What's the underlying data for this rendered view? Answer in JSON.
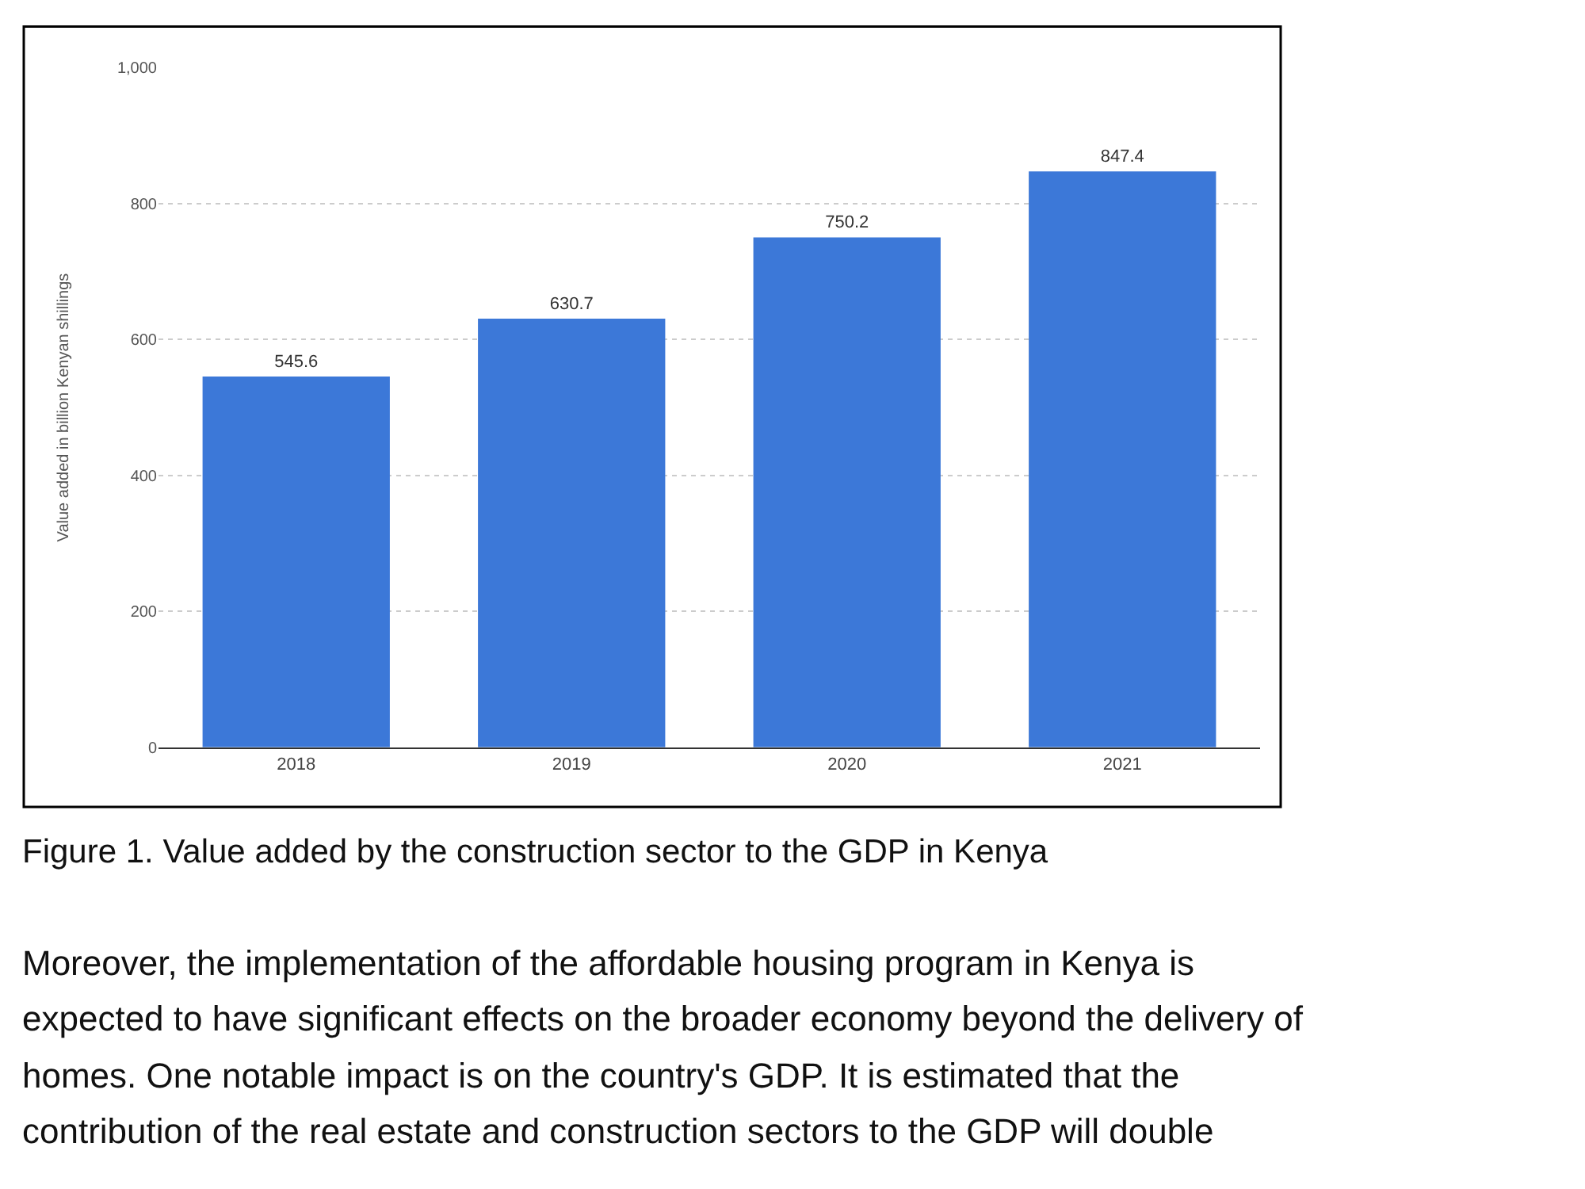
{
  "chart_data": {
    "type": "bar",
    "ylabel": "Value added in billion Kenyan shillings",
    "categories": [
      "2018",
      "2019",
      "2020",
      "2021"
    ],
    "values": [
      545.6,
      630.7,
      750.2,
      847.4
    ],
    "color": "#3c78d8",
    "data_labels": true,
    "ylim": [
      0,
      1000
    ],
    "yticks": [
      0,
      200,
      400,
      600,
      800,
      {
        "value": 1000,
        "label": "1,000"
      }
    ],
    "grid": "y",
    "legend": false,
    "annotations": [
      "Figure 1. Value added by the construction sector to the GDP in Kenya",
      "Moreover, the implementation of the affordable housing program in Kenya is",
      "expected to have significant effects on the broader economy beyond the delivery of",
      "homes. One notable impact is on the country's GDP. It is estimated that the",
      "contribution of the real estate and construction sectors to the GDP will double"
    ]
  }
}
